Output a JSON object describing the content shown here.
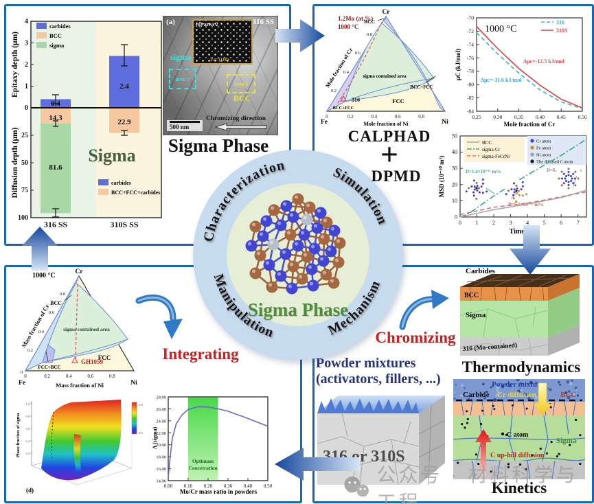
{
  "watermark": {
    "icon": "wechat-icon",
    "text": "公众号 · 材料科学与工程"
  },
  "center": {
    "ring": [
      "Characterization",
      "Simulation",
      "Manipulation",
      "Mechanism"
    ],
    "core": "Sigma Phase"
  },
  "labels": {
    "calphad": "CALPHAD",
    "plus": "+",
    "dpmd": "DPMD",
    "integrating": "Integrating",
    "chromizing": "Chromizing",
    "thermodynamics": "Thermodynamics",
    "kinetics": "Kinetics",
    "caption_tl": "Sigma Phase",
    "powder1": "Powder mixtures",
    "powder2": "(activators, fillers, ...)",
    "alloy_block": "316 or 310S"
  },
  "tem": {
    "tag": "(a)",
    "alloy": "316 SS",
    "sigma": "sigma",
    "area2": "area 2",
    "inset_title": "(d) area 2",
    "inset_zone": "Zσ=(110)",
    "area1": "area 1",
    "bcc": "BCC",
    "scalebar": "500 nm",
    "direction": "Chromizing direction"
  },
  "thermo_block": {
    "carbides": "Carbides",
    "bcc": "BCC",
    "sigma": "Sigma",
    "substrate": "316 (Mo-contained)"
  },
  "kinetics_panel": {
    "powder": "Powder mixtures",
    "carbide": "Carbide",
    "cr_diffusion": "Cr diffusion",
    "bcc": "BCC",
    "c_atom": "C atom",
    "sigma": "Sigma",
    "uphill": "C up-hill diffusion"
  },
  "chart_data": [
    {
      "id": "depth_bars",
      "type": "bar",
      "categories": [
        "316 SS",
        "310S SS"
      ],
      "legend_top": [
        "carbides",
        "BCC",
        "sigma"
      ],
      "legend_bottom": [
        "carbides",
        "BCC+FCC+carbides"
      ],
      "ylabel_top": "Epitaxy depth (μm)",
      "ylabel_bottom": "Diffusion depth (μm)",
      "yticks_top": [
        "4",
        "3",
        "2",
        "1",
        "0"
      ],
      "yticks_bottom": [
        "25",
        "50",
        "75",
        "100"
      ],
      "epitaxy_values": {
        "carbides": [
          0.4,
          2.4
        ]
      },
      "diffusion_values": {
        "BCC_layer": [
          14.3,
          22.9
        ],
        "sigma_layer": [
          81.6,
          0
        ]
      },
      "value_labels": [
        "0.4",
        "14.3",
        "81.6",
        "2.4",
        "22.9"
      ],
      "annotation": "Sigma",
      "colors": {
        "carbides": "#5f6ede",
        "bcc": "#f7c9a0",
        "sigma": "#a9d8a6"
      }
    },
    {
      "id": "ternary_316_mole",
      "type": "ternary",
      "title_line1": "1.2Mo (at.%)",
      "title_line2": "1000 °C",
      "corner_top": "Cr",
      "corner_left": "Fe",
      "corner_right": "Ni",
      "ylabel": "Mole fraction of Cr",
      "xlabel": "Mole fraction of Ni",
      "xticks": [
        "0",
        "0.2",
        "0.4",
        "0.6",
        "0.8"
      ],
      "yticks": [
        "0.2",
        "0.4",
        "0.6",
        "0.8"
      ],
      "regions": {
        "bcc": "BCC",
        "sigma": "sigma contained area",
        "bcc_fcc_right": "BCC+FCC",
        "fcc": "FCC",
        "bcc_fcc_left": "BCC+FCC"
      },
      "marker": "316"
    },
    {
      "id": "carbon_chemical_potential",
      "type": "line",
      "title": "1000 °C",
      "xlabel": "Mole fraction of Cr",
      "ylabel": "μC (kJ/mol)",
      "xticks": [
        "0.25",
        "0.30",
        "0.35",
        "0.40",
        "0.45",
        "0.50"
      ],
      "yticks": [
        "-70",
        "-72",
        "-74",
        "-76",
        "-78",
        "-80",
        "-82",
        "-84"
      ],
      "legend": [
        "316",
        "310S"
      ],
      "series": [
        {
          "name": "316",
          "style": "dashed",
          "color": "#44b2dc",
          "x": [
            0.25,
            0.3,
            0.35,
            0.4,
            0.45,
            0.5
          ],
          "y": [
            -72.2,
            -75.4,
            -78.3,
            -80.8,
            -82.6,
            -83.6
          ]
        },
        {
          "name": "310S",
          "style": "solid",
          "color": "#e04848",
          "x": [
            0.25,
            0.3,
            0.35,
            0.4,
            0.45,
            0.5
          ],
          "y": [
            -71.3,
            -74.6,
            -77.6,
            -80.1,
            -82.2,
            -83.5
          ]
        }
      ],
      "annotations": [
        {
          "text": "Δμc=-12.5 kJ/mol",
          "color": "#e04848"
        },
        {
          "text": "Δμc=-11.6 kJ/mol",
          "color": "#35a8d0"
        }
      ]
    },
    {
      "id": "msd",
      "type": "line",
      "xlabel": "Time (ns)",
      "ylabel": "MSD (10⁻²⁰ m²)",
      "xticks": [
        "0",
        "1",
        "2",
        "3",
        "4",
        "5",
        "6",
        "7"
      ],
      "yticks": [
        "0",
        "10",
        "20",
        "30",
        "40",
        "50"
      ],
      "legend_lines": [
        "BCC",
        "sigma-Cr",
        "sigma-FeCrNi"
      ],
      "legend_atoms": [
        "Cr atom",
        "Fe atom",
        "Ni atom",
        "The diffused C atom"
      ],
      "series": [
        {
          "name": "sigma-Cr",
          "style": "dashdot",
          "color": "#2fa898",
          "x": [
            0,
            0.5,
            2,
            4,
            6,
            7.5
          ],
          "y": [
            0,
            2,
            13,
            26,
            38,
            48
          ]
        },
        {
          "name": "BCC",
          "style": "solid",
          "color": "#a8a8b0",
          "x": [
            0,
            2,
            4,
            6,
            7.5
          ],
          "y": [
            0,
            4.5,
            8,
            12,
            16.5
          ]
        },
        {
          "name": "sigma-FeCrNi",
          "style": "dashed",
          "color": "#e07070",
          "x": [
            0,
            2,
            4,
            6,
            7.5
          ],
          "y": [
            1.5,
            6,
            8.5,
            12.5,
            15.5
          ]
        }
      ],
      "annotations": [
        {
          "text": "D=1.4×10⁻¹¹ m²/s",
          "color": "#2fa898"
        },
        {
          "text": "D=6.4×10⁻¹² m²/s",
          "color": "#8a8aa8"
        },
        {
          "text": "D=5.1×10⁻¹² m²/s",
          "color": "#e05050"
        }
      ]
    },
    {
      "id": "ternary_gh1059_mass",
      "type": "ternary",
      "title_line1": "1000 °C",
      "corner_top": "Cr",
      "corner_left": "Fe",
      "corner_right": "Ni",
      "ylabel": "Mass fraction of Cr",
      "xlabel": "Mass fraction of Ni",
      "xticks": [
        "0",
        "0.2",
        "0.4",
        "0.6",
        "0.8"
      ],
      "yticks": [
        "0.2",
        "0.4",
        "0.6",
        "0.8"
      ],
      "zero_label": "0",
      "regions": {
        "bcc": "BCC",
        "sigma": "sigma contained area",
        "fcc": "FCC",
        "fcc_bcc": "FCC+BCC"
      },
      "marker": "GH1059"
    },
    {
      "id": "sigma_fraction_surface",
      "type": "surface",
      "tag": "(d)",
      "zlabel": "Phase fraction of sigma",
      "zticks": [
        "1.0",
        "0.8",
        "0.6",
        "0.4",
        "0.2"
      ],
      "colorbar_top": "1.0",
      "colorbar_bottom": "0.0"
    },
    {
      "id": "a_sigma_vs_mocr",
      "type": "line",
      "xlabel": "Mo/Cr mass ratio in powders",
      "ylabel": "A (sigma)",
      "xticks": [
        "0.00",
        "0.10",
        "0.20",
        "0.30",
        "0.40",
        "0.50"
      ],
      "yticks": [
        "28.00",
        "26.00",
        "24.00",
        "22.00",
        "20.00",
        "18.00",
        "16.00",
        "14.00"
      ],
      "band": {
        "label_line1": "Optimum",
        "label_line2": "Concetration",
        "x_range": [
          0.1,
          0.25
        ],
        "color": "#52e052"
      },
      "series": [
        {
          "name": "A(sigma)",
          "color": "#6666cc",
          "x": [
            0.0,
            0.01,
            0.02,
            0.04,
            0.07,
            0.1,
            0.15,
            0.2,
            0.25,
            0.3,
            0.4,
            0.5
          ],
          "y": [
            14.5,
            18.0,
            21.0,
            23.5,
            25.0,
            25.9,
            26.35,
            26.3,
            26.0,
            25.6,
            24.4,
            23.1
          ]
        }
      ]
    }
  ]
}
